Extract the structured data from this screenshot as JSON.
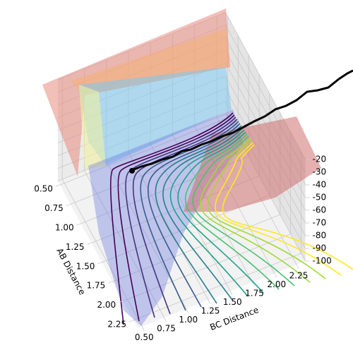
{
  "chart_data": {
    "type": "surface3d",
    "xlabel": "AB Distance",
    "ylabel": "BC Distance",
    "xlim": [
      0.45,
      2.35
    ],
    "ylim": [
      0.45,
      2.35
    ],
    "zlim": [
      -100,
      -20
    ],
    "xticks": [
      {
        "value": 0.5,
        "label": "0.50"
      },
      {
        "value": 0.75,
        "label": "0.75"
      },
      {
        "value": 1.0,
        "label": "1.00"
      },
      {
        "value": 1.25,
        "label": "1.25"
      },
      {
        "value": 1.5,
        "label": "1.50"
      },
      {
        "value": 1.75,
        "label": "1.75"
      },
      {
        "value": 2.0,
        "label": "2.00"
      },
      {
        "value": 2.25,
        "label": "2.25"
      }
    ],
    "yticks": [
      {
        "value": 0.5,
        "label": "0.50"
      },
      {
        "value": 0.75,
        "label": "0.75"
      },
      {
        "value": 1.0,
        "label": "1.00"
      },
      {
        "value": 1.25,
        "label": "1.25"
      },
      {
        "value": 1.5,
        "label": "1.50"
      },
      {
        "value": 1.75,
        "label": "1.75"
      },
      {
        "value": 2.0,
        "label": "2.00"
      },
      {
        "value": 2.25,
        "label": "2.25"
      }
    ],
    "zticks": [
      -20,
      -30,
      -40,
      -50,
      -60,
      -70,
      -80,
      -90,
      -100
    ],
    "grid": true
  }
}
